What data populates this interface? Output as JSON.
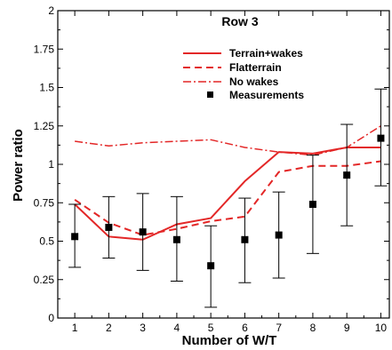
{
  "chart_data": {
    "type": "line",
    "title": "Row 3",
    "xlabel": "Number of W/T",
    "ylabel": "Power ratio",
    "xlim": [
      0.5,
      10.25
    ],
    "ylim": [
      0,
      2
    ],
    "x": [
      1,
      2,
      3,
      4,
      5,
      6,
      7,
      8,
      9,
      10
    ],
    "xticks": [
      "1",
      "2",
      "3",
      "4",
      "5",
      "6",
      "7",
      "8",
      "9",
      "10"
    ],
    "yticks": [
      "0",
      "0.25",
      "0.5",
      "0.75",
      "1",
      "1.25",
      "1.5",
      "1.75",
      "2"
    ],
    "legend_position": "top-right",
    "grid": false,
    "colors": {
      "model": "#e32727",
      "measurement": "#000000"
    },
    "series": [
      {
        "name": "Terrain+wakes",
        "style": "solid",
        "values": [
          0.74,
          0.53,
          0.51,
          0.61,
          0.65,
          0.89,
          1.08,
          1.07,
          1.11,
          1.11
        ]
      },
      {
        "name": "Flat terrain",
        "style": "dashed",
        "values": [
          0.77,
          0.62,
          0.54,
          0.58,
          0.63,
          0.66,
          0.95,
          0.99,
          0.99,
          1.02
        ]
      },
      {
        "name": "No wakes",
        "style": "dashdot",
        "values": [
          1.15,
          1.12,
          1.14,
          1.15,
          1.16,
          1.11,
          1.08,
          1.06,
          1.11,
          1.25
        ]
      },
      {
        "name": "Measurements",
        "style": "markers",
        "values": [
          0.53,
          0.59,
          0.56,
          0.51,
          0.34,
          0.51,
          0.54,
          0.74,
          0.93,
          1.17
        ],
        "error_low": [
          0.33,
          0.39,
          0.31,
          0.24,
          0.07,
          0.23,
          0.26,
          0.42,
          0.6,
          0.86
        ],
        "error_high": [
          0.74,
          0.79,
          0.81,
          0.79,
          0.6,
          0.78,
          0.82,
          1.06,
          1.26,
          1.49
        ]
      }
    ],
    "legend": {
      "labels": [
        "Terrain+wakes",
        "Flatterrain",
        "No wakes",
        "Measurements"
      ]
    }
  }
}
